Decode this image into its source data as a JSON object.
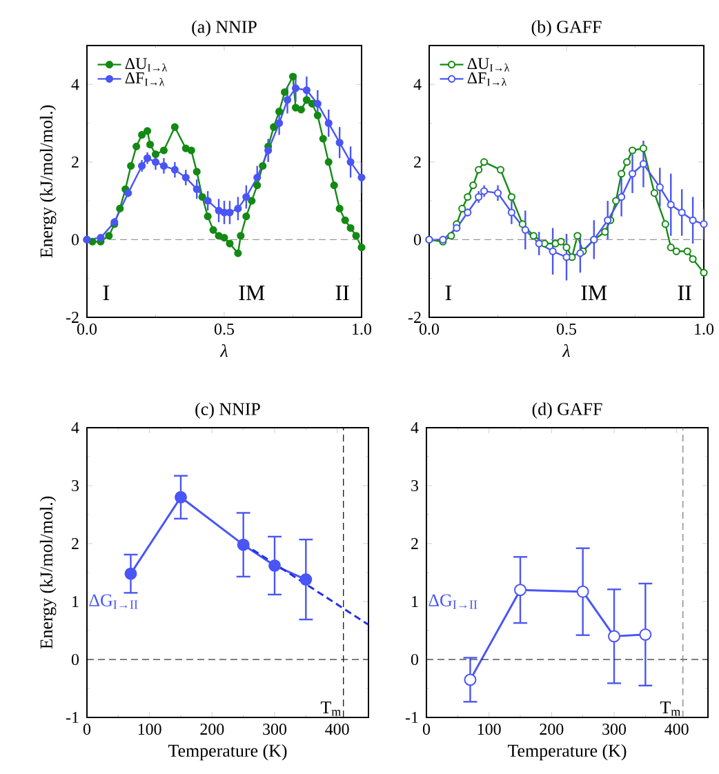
{
  "chart_data": [
    {
      "type": "line",
      "title": "(a) NNIP",
      "xlabel": "*λ*",
      "ylabel": "Energy (kJ/mol/mol.)",
      "xlim": [
        0,
        1
      ],
      "ylim": [
        -2,
        5
      ],
      "xticks": [
        {
          "value": 0,
          "label": "0.0"
        },
        {
          "value": 0.5,
          "label": "0.5"
        },
        {
          "value": 1,
          "label": "1.0"
        }
      ],
      "yticks": [
        -2,
        0,
        2,
        4
      ],
      "legend": "top left",
      "marker": "circle",
      "series": [
        {
          "name": "ΔU$_{I→λ}$",
          "color": "#138a13",
          "x": [
            0,
            0.02,
            0.05,
            0.08,
            0.1,
            0.12,
            0.14,
            0.16,
            0.18,
            0.2,
            0.22,
            0.23,
            0.25,
            0.28,
            0.32,
            0.36,
            0.38,
            0.4,
            0.42,
            0.44,
            0.46,
            0.48,
            0.5,
            0.52,
            0.55,
            0.56,
            0.58,
            0.6,
            0.62,
            0.64,
            0.66,
            0.68,
            0.7,
            0.72,
            0.75,
            0.76,
            0.78,
            0.8,
            0.82,
            0.84,
            0.86,
            0.88,
            0.9,
            0.92,
            0.94,
            0.96,
            0.98,
            1.0
          ],
          "values": [
            0,
            -0.05,
            -0.05,
            0.1,
            0.4,
            0.8,
            1.3,
            1.9,
            2.4,
            2.7,
            2.8,
            2.45,
            2.2,
            2.3,
            2.9,
            2.35,
            2.3,
            1.75,
            1.1,
            0.6,
            0.25,
            0.1,
            0.05,
            -0.1,
            -0.35,
            0.1,
            0.6,
            1.0,
            1.4,
            1.9,
            2.4,
            2.9,
            3.3,
            3.8,
            4.2,
            3.4,
            3.35,
            3.6,
            3.5,
            3.2,
            2.6,
            2.0,
            1.4,
            0.8,
            0.5,
            0.3,
            0.1,
            -0.2
          ]
        },
        {
          "name": "ΔF$_{I→λ}$",
          "color": "#4a55f5",
          "x": [
            0,
            0.05,
            0.1,
            0.15,
            0.2,
            0.22,
            0.25,
            0.28,
            0.32,
            0.36,
            0.4,
            0.44,
            0.48,
            0.5,
            0.52,
            0.55,
            0.58,
            0.62,
            0.66,
            0.7,
            0.73,
            0.76,
            0.8,
            0.84,
            0.88,
            0.92,
            0.96,
            1.0
          ],
          "values": [
            0,
            0.05,
            0.45,
            1.2,
            1.9,
            2.1,
            2.0,
            1.9,
            1.8,
            1.6,
            1.3,
            1.0,
            0.75,
            0.7,
            0.7,
            0.8,
            1.1,
            1.6,
            2.3,
            3.0,
            3.6,
            3.9,
            3.85,
            3.5,
            3.0,
            2.5,
            2.0,
            1.6
          ],
          "errors": [
            0.05,
            0.05,
            0.1,
            0.1,
            0.15,
            0.15,
            0.2,
            0.2,
            0.2,
            0.2,
            0.25,
            0.25,
            0.3,
            0.3,
            0.3,
            0.3,
            0.3,
            0.3,
            0.3,
            0.3,
            0.35,
            0.35,
            0.35,
            0.35,
            0.35,
            0.4,
            0.4,
            0.4
          ]
        }
      ],
      "ref_lines": [
        {
          "axis": "y",
          "value": 0,
          "color": "#999999",
          "line_style": "dashed"
        }
      ],
      "annotations": [
        "I",
        "IM",
        "II"
      ]
    },
    {
      "type": "line",
      "title": "(b) GAFF",
      "xlabel": "*λ*",
      "xlim": [
        0,
        1
      ],
      "ylim": [
        -2,
        5
      ],
      "xticks": [
        {
          "value": 0,
          "label": "0.0"
        },
        {
          "value": 0.5,
          "label": "0.5"
        },
        {
          "value": 1,
          "label": "1.0"
        }
      ],
      "yticks": [
        -2,
        0,
        2,
        4
      ],
      "legend": "top left",
      "marker": "circle",
      "series": [
        {
          "name": "ΔU$_{I→λ}$",
          "color": "#138a13",
          "x": [
            0,
            0.05,
            0.08,
            0.1,
            0.12,
            0.14,
            0.16,
            0.18,
            0.2,
            0.26,
            0.3,
            0.34,
            0.38,
            0.42,
            0.46,
            0.48,
            0.5,
            0.52,
            0.54,
            0.56,
            0.6,
            0.64,
            0.66,
            0.68,
            0.7,
            0.72,
            0.74,
            0.78,
            0.82,
            0.86,
            0.88,
            0.9,
            0.94,
            0.96,
            1.0
          ],
          "values": [
            0,
            -0.05,
            0.1,
            0.4,
            0.8,
            1.1,
            1.4,
            1.8,
            2.0,
            1.8,
            1.1,
            0.4,
            0.1,
            -0.1,
            -0.1,
            -0.05,
            -0.2,
            -0.45,
            0.1,
            -0.3,
            0,
            0.2,
            0.5,
            1.0,
            1.7,
            2.0,
            2.3,
            2.35,
            1.2,
            0.4,
            -0.2,
            -0.3,
            -0.3,
            -0.5,
            -0.85
          ]
        },
        {
          "name": "ΔF$_{I→λ}$",
          "color": "#4a55f5",
          "x": [
            0,
            0.05,
            0.1,
            0.14,
            0.18,
            0.2,
            0.25,
            0.3,
            0.35,
            0.4,
            0.45,
            0.5,
            0.55,
            0.6,
            0.65,
            0.7,
            0.74,
            0.78,
            0.84,
            0.88,
            0.92,
            0.96,
            1.0
          ],
          "values": [
            0,
            0,
            0.3,
            0.7,
            1.1,
            1.25,
            1.2,
            0.7,
            0.25,
            -0.1,
            -0.3,
            -0.45,
            -0.35,
            0,
            0.5,
            1.1,
            1.7,
            1.95,
            1.35,
            0.9,
            0.7,
            0.5,
            0.4
          ],
          "errors": [
            0.05,
            0.05,
            0.1,
            0.1,
            0.15,
            0.15,
            0.2,
            0.3,
            0.5,
            0.3,
            0.6,
            0.6,
            0.5,
            0.5,
            0.5,
            0.5,
            0.5,
            0.6,
            0.5,
            0.8,
            0.6,
            0.6,
            0.4
          ]
        }
      ],
      "ref_lines": [
        {
          "axis": "y",
          "value": 0,
          "color": "#999999",
          "line_style": "dashed"
        }
      ],
      "annotations": [
        "I",
        "IM",
        "II"
      ]
    },
    {
      "type": "line",
      "title": "(c) NNIP",
      "xlabel": "Temperature (K)",
      "ylabel": "Energy (kJ/mol/mol.)",
      "xlim": [
        0,
        450
      ],
      "ylim": [
        -1,
        4
      ],
      "xticks": [
        0,
        100,
        200,
        300,
        400
      ],
      "yticks": [
        -1,
        0,
        1,
        2,
        3,
        4
      ],
      "marker": "circle",
      "x": [
        70,
        150,
        250,
        300,
        350
      ],
      "series": [
        {
          "name": "ΔG$_{I→II}$",
          "color": "#4a55f5",
          "values": [
            1.48,
            2.8,
            1.98,
            1.62,
            1.38
          ],
          "errors": [
            0.33,
            0.37,
            0.55,
            0.5,
            0.69
          ]
        },
        {
          "color": "#2030f0",
          "type": "line",
          "x": [
            250,
            450
          ],
          "values": [
            2.0,
            0.6
          ],
          "line_style": "dashed",
          "marker": "none"
        }
      ],
      "ref_lines": [
        {
          "axis": "y",
          "value": 0,
          "color": "#000000",
          "line_style": "dashed"
        },
        {
          "axis": "x",
          "value": 410,
          "label": "T$_{m}$",
          "color": "#000000",
          "line_style": "dashed"
        }
      ]
    },
    {
      "type": "line",
      "title": "(d) GAFF",
      "xlabel": "Temperature (K)",
      "xlim": [
        0,
        450
      ],
      "ylim": [
        -1,
        4
      ],
      "xticks": [
        0,
        100,
        200,
        300,
        400
      ],
      "yticks": [
        -1,
        0,
        1,
        2,
        3,
        4
      ],
      "marker": "circle",
      "x": [
        70,
        150,
        250,
        300,
        350
      ],
      "series": [
        {
          "name": "ΔG$_{I→II}$",
          "color": "#4a55f5",
          "values": [
            -0.35,
            1.2,
            1.17,
            0.4,
            0.43
          ],
          "errors": [
            0.38,
            0.57,
            0.75,
            0.81,
            0.88
          ]
        }
      ],
      "ref_lines": [
        {
          "axis": "y",
          "value": 0,
          "color": "#000000",
          "line_style": "dashed"
        },
        {
          "axis": "x",
          "value": 410,
          "label": "T$_{m}$",
          "color": "#777777",
          "line_style": "dashed"
        }
      ]
    }
  ]
}
